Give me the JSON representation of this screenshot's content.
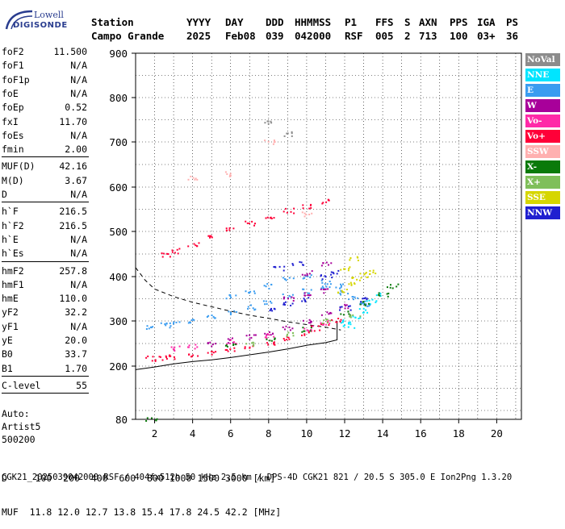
{
  "logo": {
    "line1": "Lowell",
    "line2": "DIGISONDE"
  },
  "header": {
    "labels": [
      "Station",
      "YYYY",
      "DAY",
      "DDD",
      "HHMMSS",
      "P1",
      "FFS",
      "S",
      "AXN",
      "PPS",
      "IGA",
      "PS"
    ],
    "values": [
      "Campo Grande",
      "2025",
      "Feb08",
      "039",
      "042000",
      "RSF",
      "005",
      "2",
      "713",
      "100",
      "03+",
      "36"
    ]
  },
  "params": {
    "group1": [
      {
        "k": "foF2",
        "v": "11.500"
      },
      {
        "k": "foF1",
        "v": "N/A"
      },
      {
        "k": "foF1p",
        "v": "N/A"
      },
      {
        "k": "foE",
        "v": "N/A"
      },
      {
        "k": "foEp",
        "v": "0.52"
      },
      {
        "k": "fxI",
        "v": "11.70"
      },
      {
        "k": "foEs",
        "v": "N/A"
      },
      {
        "k": "fmin",
        "v": "2.00"
      }
    ],
    "group2": [
      {
        "k": "MUF(D)",
        "v": "42.16"
      },
      {
        "k": "M(D)",
        "v": "3.67"
      },
      {
        "k": "D",
        "v": "N/A"
      }
    ],
    "group3": [
      {
        "k": "h`F",
        "v": "216.5"
      },
      {
        "k": "h`F2",
        "v": "216.5"
      },
      {
        "k": "h`E",
        "v": "N/A"
      },
      {
        "k": "h`Es",
        "v": "N/A"
      }
    ],
    "group4": [
      {
        "k": "hmF2",
        "v": "257.8"
      },
      {
        "k": "hmF1",
        "v": "N/A"
      },
      {
        "k": "hmE",
        "v": "110.0"
      },
      {
        "k": "yF2",
        "v": "32.2"
      },
      {
        "k": "yF1",
        "v": "N/A"
      },
      {
        "k": "yE",
        "v": "20.0"
      },
      {
        "k": "B0",
        "v": "33.7"
      },
      {
        "k": "B1",
        "v": "1.70"
      }
    ],
    "group5": [
      {
        "k": "C-level",
        "v": "55"
      }
    ],
    "auto": [
      "Auto:",
      "Artist5",
      "500200"
    ]
  },
  "legend": [
    {
      "label": "NoVal",
      "color": "#8c8c8c"
    },
    {
      "label": "NNE",
      "color": "#00e5ff"
    },
    {
      "label": "E",
      "color": "#3a9cf0"
    },
    {
      "label": "W",
      "color": "#a8009a"
    },
    {
      "label": "Vo-",
      "color": "#ff2aa8"
    },
    {
      "label": "Vo+",
      "color": "#ff0038"
    },
    {
      "label": "SSW",
      "color": "#ffb0b0"
    },
    {
      "label": "X-",
      "color": "#0a7a0a"
    },
    {
      "label": "X+",
      "color": "#7fbf5a"
    },
    {
      "label": "SSE",
      "color": "#d6d600"
    },
    {
      "label": "NNW",
      "color": "#1f1fd0"
    }
  ],
  "bottom": {
    "d_line": "D     100  200  400  600  800 1000 1500 3000 [km]",
    "muf_line": "MUF  11.8 12.0 12.7 13.8 15.4 17.8 24.5 42.2 [MHz]"
  },
  "footer": "CGK21_2025039042000.RSF / 404fx512h 50 kHz 2.5 km / DPS-4D CGK21 821 / 20.5 S 305.0 E Ion2Png 1.3.20",
  "chart_data": {
    "type": "scatter",
    "x_ticks": [
      2,
      4,
      6,
      8,
      10,
      12,
      14,
      16,
      18,
      20
    ],
    "y_ticks": [
      80,
      200,
      300,
      400,
      500,
      600,
      700,
      800,
      900
    ],
    "y_scale": "piecewise",
    "xlim": [
      1,
      21
    ],
    "ylim": [
      80,
      900
    ],
    "grid": true,
    "series": [
      {
        "name": "E",
        "color": "#3a9cf0",
        "points": [
          [
            1.8,
            288
          ],
          [
            2.5,
            292
          ],
          [
            3,
            296
          ],
          [
            4,
            302
          ],
          [
            5,
            310
          ],
          [
            6,
            320
          ],
          [
            7,
            332
          ],
          [
            8,
            345
          ],
          [
            9,
            358
          ],
          [
            10,
            368
          ],
          [
            11,
            374
          ],
          [
            11.8,
            380
          ],
          [
            12,
            365
          ],
          [
            12.4,
            355
          ],
          [
            12.8,
            345
          ],
          [
            13,
            338
          ],
          [
            8,
            380
          ],
          [
            9,
            398
          ],
          [
            7,
            365
          ],
          [
            6,
            355
          ],
          [
            10,
            400
          ],
          [
            11,
            390
          ]
        ]
      },
      {
        "name": "NNE",
        "color": "#00e5ff",
        "points": [
          [
            12,
            300
          ],
          [
            12.5,
            310
          ],
          [
            13,
            325
          ],
          [
            13.4,
            345
          ],
          [
            13.8,
            360
          ],
          [
            12.2,
            290
          ]
        ]
      },
      {
        "name": "Vo+",
        "color": "#ff0038",
        "points": [
          [
            1.8,
            218
          ],
          [
            2.5,
            220
          ],
          [
            3,
            222
          ],
          [
            4,
            226
          ],
          [
            5,
            231
          ],
          [
            6,
            237
          ],
          [
            7,
            244
          ],
          [
            8,
            252
          ],
          [
            9,
            262
          ],
          [
            10,
            275
          ],
          [
            10.5,
            285
          ],
          [
            11,
            295
          ],
          [
            11.5,
            302
          ],
          [
            2.5,
            450
          ],
          [
            3,
            458
          ],
          [
            4,
            472
          ],
          [
            5,
            488
          ],
          [
            6,
            505
          ],
          [
            7,
            520
          ],
          [
            8,
            535
          ],
          [
            9,
            548
          ],
          [
            10,
            558
          ],
          [
            11,
            568
          ]
        ]
      },
      {
        "name": "W",
        "color": "#a8009a",
        "points": [
          [
            5,
            250
          ],
          [
            6,
            258
          ],
          [
            7,
            266
          ],
          [
            8,
            276
          ],
          [
            9,
            286
          ],
          [
            10,
            300
          ],
          [
            11,
            318
          ],
          [
            12,
            335
          ],
          [
            9,
            350
          ],
          [
            10,
            360
          ],
          [
            11,
            370
          ],
          [
            10,
            410
          ],
          [
            11,
            430
          ]
        ]
      },
      {
        "name": "Vo-",
        "color": "#ff2aa8",
        "points": [
          [
            3,
            240
          ],
          [
            4,
            245
          ],
          [
            6,
            255
          ],
          [
            8,
            268
          ],
          [
            10,
            285
          ],
          [
            11,
            298
          ]
        ]
      },
      {
        "name": "X-",
        "color": "#0a7a0a",
        "points": [
          [
            6,
            245
          ],
          [
            8,
            262
          ],
          [
            10,
            282
          ],
          [
            12,
            320
          ],
          [
            13,
            340
          ],
          [
            14,
            360
          ],
          [
            14.5,
            380
          ],
          [
            1.8,
            82
          ]
        ]
      },
      {
        "name": "X+",
        "color": "#7fbf5a",
        "points": [
          [
            7,
            250
          ],
          [
            9,
            272
          ],
          [
            11,
            300
          ],
          [
            12.5,
            310
          ]
        ]
      },
      {
        "name": "SSE",
        "color": "#d6d600",
        "points": [
          [
            11.8,
            370
          ],
          [
            12.2,
            385
          ],
          [
            12.6,
            395
          ],
          [
            13,
            405
          ],
          [
            13.3,
            410
          ],
          [
            12,
            420
          ],
          [
            12.5,
            440
          ]
        ]
      },
      {
        "name": "NNW",
        "color": "#1f1fd0",
        "points": [
          [
            8,
            330
          ],
          [
            9,
            340
          ],
          [
            10,
            350
          ],
          [
            11,
            400
          ],
          [
            11.5,
            410
          ],
          [
            8.5,
            420
          ],
          [
            9.5,
            430
          ],
          [
            12,
            330
          ],
          [
            13,
            350
          ]
        ]
      },
      {
        "name": "SSW",
        "color": "#ffb0b0",
        "points": [
          [
            4,
            620
          ],
          [
            6,
            630
          ],
          [
            8,
            700
          ],
          [
            10,
            540
          ]
        ]
      },
      {
        "name": "NoVal",
        "color": "#8c8c8c",
        "points": [
          [
            8,
            745
          ],
          [
            9,
            720
          ]
        ]
      }
    ],
    "traces": [
      {
        "name": "profile-solid",
        "style": "solid",
        "points": [
          [
            1,
            192
          ],
          [
            1.5,
            195
          ],
          [
            2,
            198
          ],
          [
            3,
            205
          ],
          [
            4,
            210
          ],
          [
            5,
            214
          ],
          [
            6,
            219
          ],
          [
            7,
            225
          ],
          [
            8,
            231
          ],
          [
            9,
            238
          ],
          [
            10,
            246
          ],
          [
            11,
            252
          ],
          [
            11.6,
            258
          ],
          [
            11.6,
            300
          ]
        ]
      },
      {
        "name": "muf-dashed",
        "style": "dashed",
        "points": [
          [
            1,
            420
          ],
          [
            1.5,
            392
          ],
          [
            2,
            372
          ],
          [
            3,
            355
          ],
          [
            4,
            342
          ],
          [
            5,
            332
          ],
          [
            6,
            322
          ],
          [
            7,
            313
          ],
          [
            8,
            306
          ],
          [
            9,
            298
          ],
          [
            10,
            292
          ],
          [
            11,
            286
          ],
          [
            11.8,
            280
          ]
        ]
      }
    ]
  }
}
